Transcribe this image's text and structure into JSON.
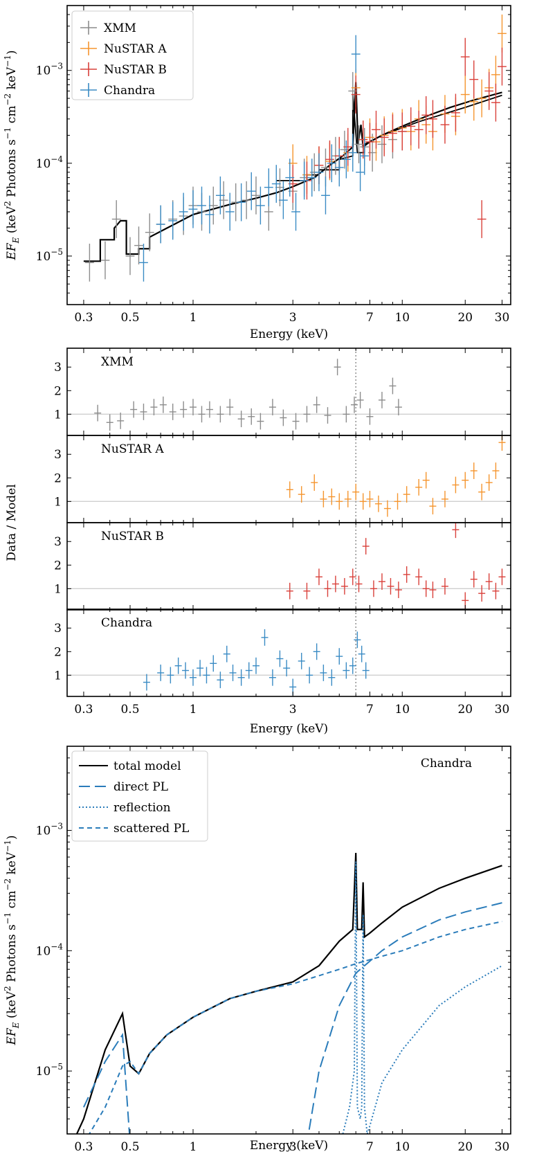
{
  "colors": {
    "xmm": "#8c8c8c",
    "nustar_a": "#f5952e",
    "nustar_b": "#d9403a",
    "chandra": "#3a8bc4",
    "model": "#000000",
    "component": "#2a7cba",
    "refline": "#cfcfcf"
  },
  "xlabel": "Energy (keV)",
  "ylabel_spec_parts": [
    "EF",
    "E",
    " (keV",
    "2",
    " Photons s",
    "−1",
    " cm",
    "−2",
    " keV",
    "−1",
    ")"
  ],
  "ylabel_ratio": "Data / Model",
  "x_ticks": [
    "0.3",
    "0.5",
    "1",
    "3",
    "7",
    "10",
    "20",
    "30"
  ],
  "y_ticks_spec": [
    {
      "base": "10",
      "exp": "−3"
    },
    {
      "base": "10",
      "exp": "−4"
    },
    {
      "base": "10",
      "exp": "−5"
    }
  ],
  "ratio_ticks": [
    "1",
    "2",
    "3"
  ],
  "legend_top": [
    "XMM",
    "NuSTAR A",
    "NuSTAR B",
    "Chandra"
  ],
  "ratio_panel_labels": [
    "XMM",
    "NuSTAR A",
    "NuSTAR B",
    "Chandra"
  ],
  "legend_bottom": [
    "total model",
    "direct PL",
    "reflection",
    "scattered PL"
  ],
  "bottom_panel_label": "Chandra",
  "chart_data": [
    {
      "type": "scatter",
      "panel": "unfolded spectrum with model",
      "xscale": "log",
      "yscale": "log",
      "xlim": [
        0.25,
        33
      ],
      "ylim": [
        3e-06,
        0.005
      ],
      "xlabel": "Energy (keV)",
      "ylabel": "EF_E (keV^2 Photons s^-1 cm^-2 keV^-1)",
      "legend_position": "top-left",
      "series": [
        {
          "name": "XMM",
          "x": [
            0.32,
            0.38,
            0.43,
            0.5,
            0.55,
            0.62,
            0.7,
            0.8,
            0.9,
            1.0,
            1.1,
            1.25,
            1.4,
            1.6,
            1.8,
            2.0,
            2.3,
            2.6,
            3.0,
            3.4,
            3.8,
            4.3,
            4.8,
            5.3,
            5.8,
            6.2,
            6.6,
            7.2,
            8.0,
            9.0,
            10.0
          ],
          "y": [
            8.5e-06,
            9e-06,
            2.5e-05,
            1e-05,
            1.3e-05,
            1.8e-05,
            2.2e-05,
            2.5e-05,
            2.7e-05,
            3.5e-05,
            3e-05,
            3.5e-05,
            4e-05,
            3.8e-05,
            4e-05,
            4.5e-05,
            3e-05,
            5.5e-05,
            5e-05,
            7e-05,
            8e-05,
            9e-05,
            0.00012,
            0.00014,
            0.0006,
            0.00016,
            0.00015,
            0.00013,
            0.00016,
            0.00018,
            0.00022
          ]
        },
        {
          "name": "NuSTAR A",
          "x": [
            3.0,
            3.5,
            4.0,
            4.5,
            5.0,
            5.5,
            6.0,
            6.5,
            7.0,
            7.5,
            8.2,
            9.0,
            10,
            11,
            12,
            13,
            14,
            16,
            18,
            20,
            22,
            24,
            26,
            28,
            30
          ],
          "y": [
            0.0001,
            7.5e-05,
            9.5e-05,
            0.000105,
            0.00012,
            0.00013,
            0.00065,
            0.00018,
            0.00019,
            0.00017,
            0.0002,
            0.00022,
            0.00024,
            0.00022,
            0.0003,
            0.00026,
            0.00022,
            0.00034,
            0.00032,
            0.00055,
            0.00046,
            0.0005,
            0.00065,
            0.0009,
            0.0025
          ]
        },
        {
          "name": "NuSTAR B",
          "x": [
            3.0,
            3.5,
            4.0,
            4.5,
            5.0,
            5.5,
            6.0,
            6.5,
            7.0,
            7.5,
            8.2,
            9.0,
            10,
            11,
            12,
            13,
            14,
            16,
            18,
            20,
            22,
            24,
            26,
            28,
            30
          ],
          "y": [
            6e-05,
            6.5e-05,
            9.5e-05,
            0.00011,
            0.00012,
            0.00015,
            0.00055,
            0.00018,
            0.00017,
            0.00023,
            0.00019,
            0.00021,
            0.00022,
            0.00025,
            0.00023,
            0.00033,
            0.0003,
            0.00026,
            0.00035,
            0.0014,
            0.0008,
            2.5e-05,
            0.0006,
            0.00045,
            0.0011
          ]
        },
        {
          "name": "Chandra",
          "x": [
            0.58,
            0.7,
            0.8,
            0.9,
            1.0,
            1.1,
            1.2,
            1.35,
            1.5,
            1.7,
            1.9,
            2.1,
            2.3,
            2.5,
            2.7,
            2.9,
            3.1,
            3.4,
            3.7,
            4.0,
            4.3,
            4.6,
            5.0,
            5.4,
            5.8,
            6.0,
            6.3,
            6.6
          ],
          "y": [
            8.5e-06,
            2.2e-05,
            2.4e-05,
            3e-05,
            3.2e-05,
            3.5e-05,
            2.8e-05,
            4.5e-05,
            3e-05,
            3.8e-05,
            5e-05,
            3.5e-05,
            5.5e-05,
            6e-05,
            4e-05,
            7e-05,
            3e-05,
            6.5e-05,
            7e-05,
            8e-05,
            4.5e-05,
            0.0001,
            9e-05,
            0.00011,
            0.00013,
            0.0015,
            8e-05,
            0.00012
          ]
        }
      ]
    },
    {
      "type": "scatter",
      "panel": "Data / Model ratios",
      "xscale": "log",
      "xlim": [
        0.25,
        33
      ],
      "ylim": [
        0.1,
        3.8
      ],
      "xlabel": "Energy (keV)",
      "ylabel": "Data / Model",
      "reference_line": 1,
      "vertical_marker_x": 6.0,
      "series": [
        {
          "name": "XMM",
          "x": [
            0.35,
            0.4,
            0.45,
            0.52,
            0.58,
            0.65,
            0.72,
            0.8,
            0.9,
            1.0,
            1.1,
            1.2,
            1.35,
            1.5,
            1.7,
            1.9,
            2.1,
            2.4,
            2.7,
            3.1,
            3.5,
            3.9,
            4.4,
            4.9,
            5.4,
            5.9,
            6.3,
            7.0,
            8.0,
            9.0,
            9.6
          ],
          "y": [
            1.05,
            0.65,
            0.72,
            1.2,
            1.1,
            1.3,
            1.4,
            1.1,
            1.2,
            1.3,
            1.0,
            1.2,
            1.0,
            1.3,
            0.8,
            0.9,
            0.7,
            1.3,
            0.85,
            0.7,
            1.0,
            1.4,
            0.95,
            3.0,
            1.0,
            1.4,
            1.6,
            0.9,
            1.6,
            2.2,
            1.3
          ]
        },
        {
          "name": "NuSTAR A",
          "x": [
            2.9,
            3.3,
            3.8,
            4.2,
            4.6,
            5.0,
            5.5,
            6.0,
            6.5,
            7.0,
            7.7,
            8.5,
            9.5,
            10.5,
            12,
            13,
            14,
            16,
            18,
            20,
            22,
            24,
            26,
            28,
            30
          ],
          "y": [
            1.5,
            1.3,
            1.8,
            1.1,
            1.2,
            1.0,
            1.1,
            1.4,
            1.0,
            1.1,
            0.9,
            0.7,
            1.0,
            1.3,
            1.6,
            1.9,
            0.8,
            1.1,
            1.7,
            1.9,
            2.3,
            1.4,
            1.8,
            2.3,
            3.5
          ]
        },
        {
          "name": "NuSTAR B",
          "x": [
            2.9,
            3.5,
            4.0,
            4.4,
            4.8,
            5.3,
            5.8,
            6.2,
            6.7,
            7.3,
            8.0,
            8.8,
            9.6,
            10.5,
            12,
            13,
            14,
            16,
            18,
            20,
            22,
            24,
            26,
            28,
            30
          ],
          "y": [
            0.9,
            0.9,
            1.5,
            1.0,
            1.2,
            1.1,
            1.5,
            1.2,
            2.8,
            1.0,
            1.3,
            1.1,
            0.95,
            1.6,
            1.5,
            1.0,
            0.95,
            1.1,
            3.5,
            0.5,
            1.4,
            0.8,
            1.3,
            0.9,
            1.5
          ]
        },
        {
          "name": "Chandra",
          "x": [
            0.6,
            0.7,
            0.78,
            0.85,
            0.92,
            1.0,
            1.08,
            1.16,
            1.25,
            1.35,
            1.45,
            1.55,
            1.7,
            1.85,
            2.0,
            2.2,
            2.4,
            2.6,
            2.8,
            3.0,
            3.3,
            3.6,
            3.9,
            4.2,
            4.6,
            5.0,
            5.4,
            5.8,
            6.1,
            6.4,
            6.7
          ],
          "y": [
            0.7,
            1.1,
            1.0,
            1.4,
            1.2,
            0.9,
            1.3,
            1.0,
            1.5,
            0.8,
            1.9,
            1.1,
            0.9,
            1.2,
            1.4,
            2.6,
            0.9,
            1.7,
            1.3,
            0.5,
            1.6,
            1.0,
            2.0,
            1.1,
            0.9,
            1.8,
            1.2,
            1.4,
            2.5,
            1.9,
            1.2
          ]
        }
      ]
    },
    {
      "type": "line",
      "panel": "Chandra model components",
      "xscale": "log",
      "yscale": "log",
      "xlim": [
        0.25,
        33
      ],
      "ylim": [
        3e-06,
        0.005
      ],
      "xlabel": "Energy (keV)",
      "ylabel": "EF_E (keV^2 Photons s^-1 cm^-2 keV^-1)",
      "legend_position": "top-left",
      "series": [
        {
          "name": "total model",
          "x": [
            0.25,
            0.3,
            0.38,
            0.46,
            0.5,
            0.55,
            0.62,
            0.75,
            1.0,
            1.5,
            2.0,
            3.0,
            4.0,
            5.0,
            5.8,
            6.0,
            6.1,
            6.4,
            6.5,
            6.6,
            7.0,
            8.0,
            10,
            15,
            20,
            30
          ],
          "y": [
            2e-06,
            4e-06,
            1.5e-05,
            3e-05,
            1.1e-05,
            9.5e-06,
            1.4e-05,
            2e-05,
            2.8e-05,
            4e-05,
            4.6e-05,
            5.5e-05,
            7.5e-05,
            0.00012,
            0.00015,
            0.00065,
            0.00015,
            0.00015,
            0.00037,
            0.00013,
            0.00014,
            0.00017,
            0.00023,
            0.00033,
            0.0004,
            0.00051
          ]
        },
        {
          "name": "direct PL",
          "x": [
            0.3,
            0.38,
            0.46,
            0.5,
            3.5,
            4.0,
            5.0,
            6.0,
            8.0,
            10,
            15,
            20,
            30
          ],
          "y": [
            5e-06,
            1.2e-05,
            2e-05,
            2.5e-06,
            2.5e-06,
            1e-05,
            3.5e-05,
            6.5e-05,
            0.0001,
            0.00013,
            0.00018,
            0.00021,
            0.00025
          ]
        },
        {
          "name": "reflection",
          "x": [
            5.2,
            5.6,
            5.9,
            6.0,
            6.1,
            6.3,
            6.4,
            6.5,
            6.6,
            6.8,
            7.0,
            8.0,
            10,
            15,
            20,
            30
          ],
          "y": [
            3e-06,
            5e-06,
            1e-05,
            0.00055,
            5e-06,
            4e-06,
            5e-06,
            0.0002,
            5e-06,
            3e-06,
            3.5e-06,
            8e-06,
            1.5e-05,
            3.5e-05,
            5e-05,
            7.5e-05
          ]
        },
        {
          "name": "scattered PL",
          "x": [
            0.3,
            0.38,
            0.46,
            0.5,
            0.55,
            0.62,
            0.75,
            1.0,
            1.5,
            2.0,
            3.0,
            4.0,
            5.0,
            6.0,
            8.0,
            10,
            15,
            20,
            30
          ],
          "y": [
            2.5e-06,
            5e-06,
            1.1e-05,
            1.2e-05,
            9.5e-06,
            1.4e-05,
            2e-05,
            2.8e-05,
            4e-05,
            4.6e-05,
            5.3e-05,
            6.2e-05,
            7e-05,
            7.8e-05,
            9e-05,
            0.0001,
            0.00013,
            0.00015,
            0.000175
          ]
        }
      ]
    }
  ]
}
